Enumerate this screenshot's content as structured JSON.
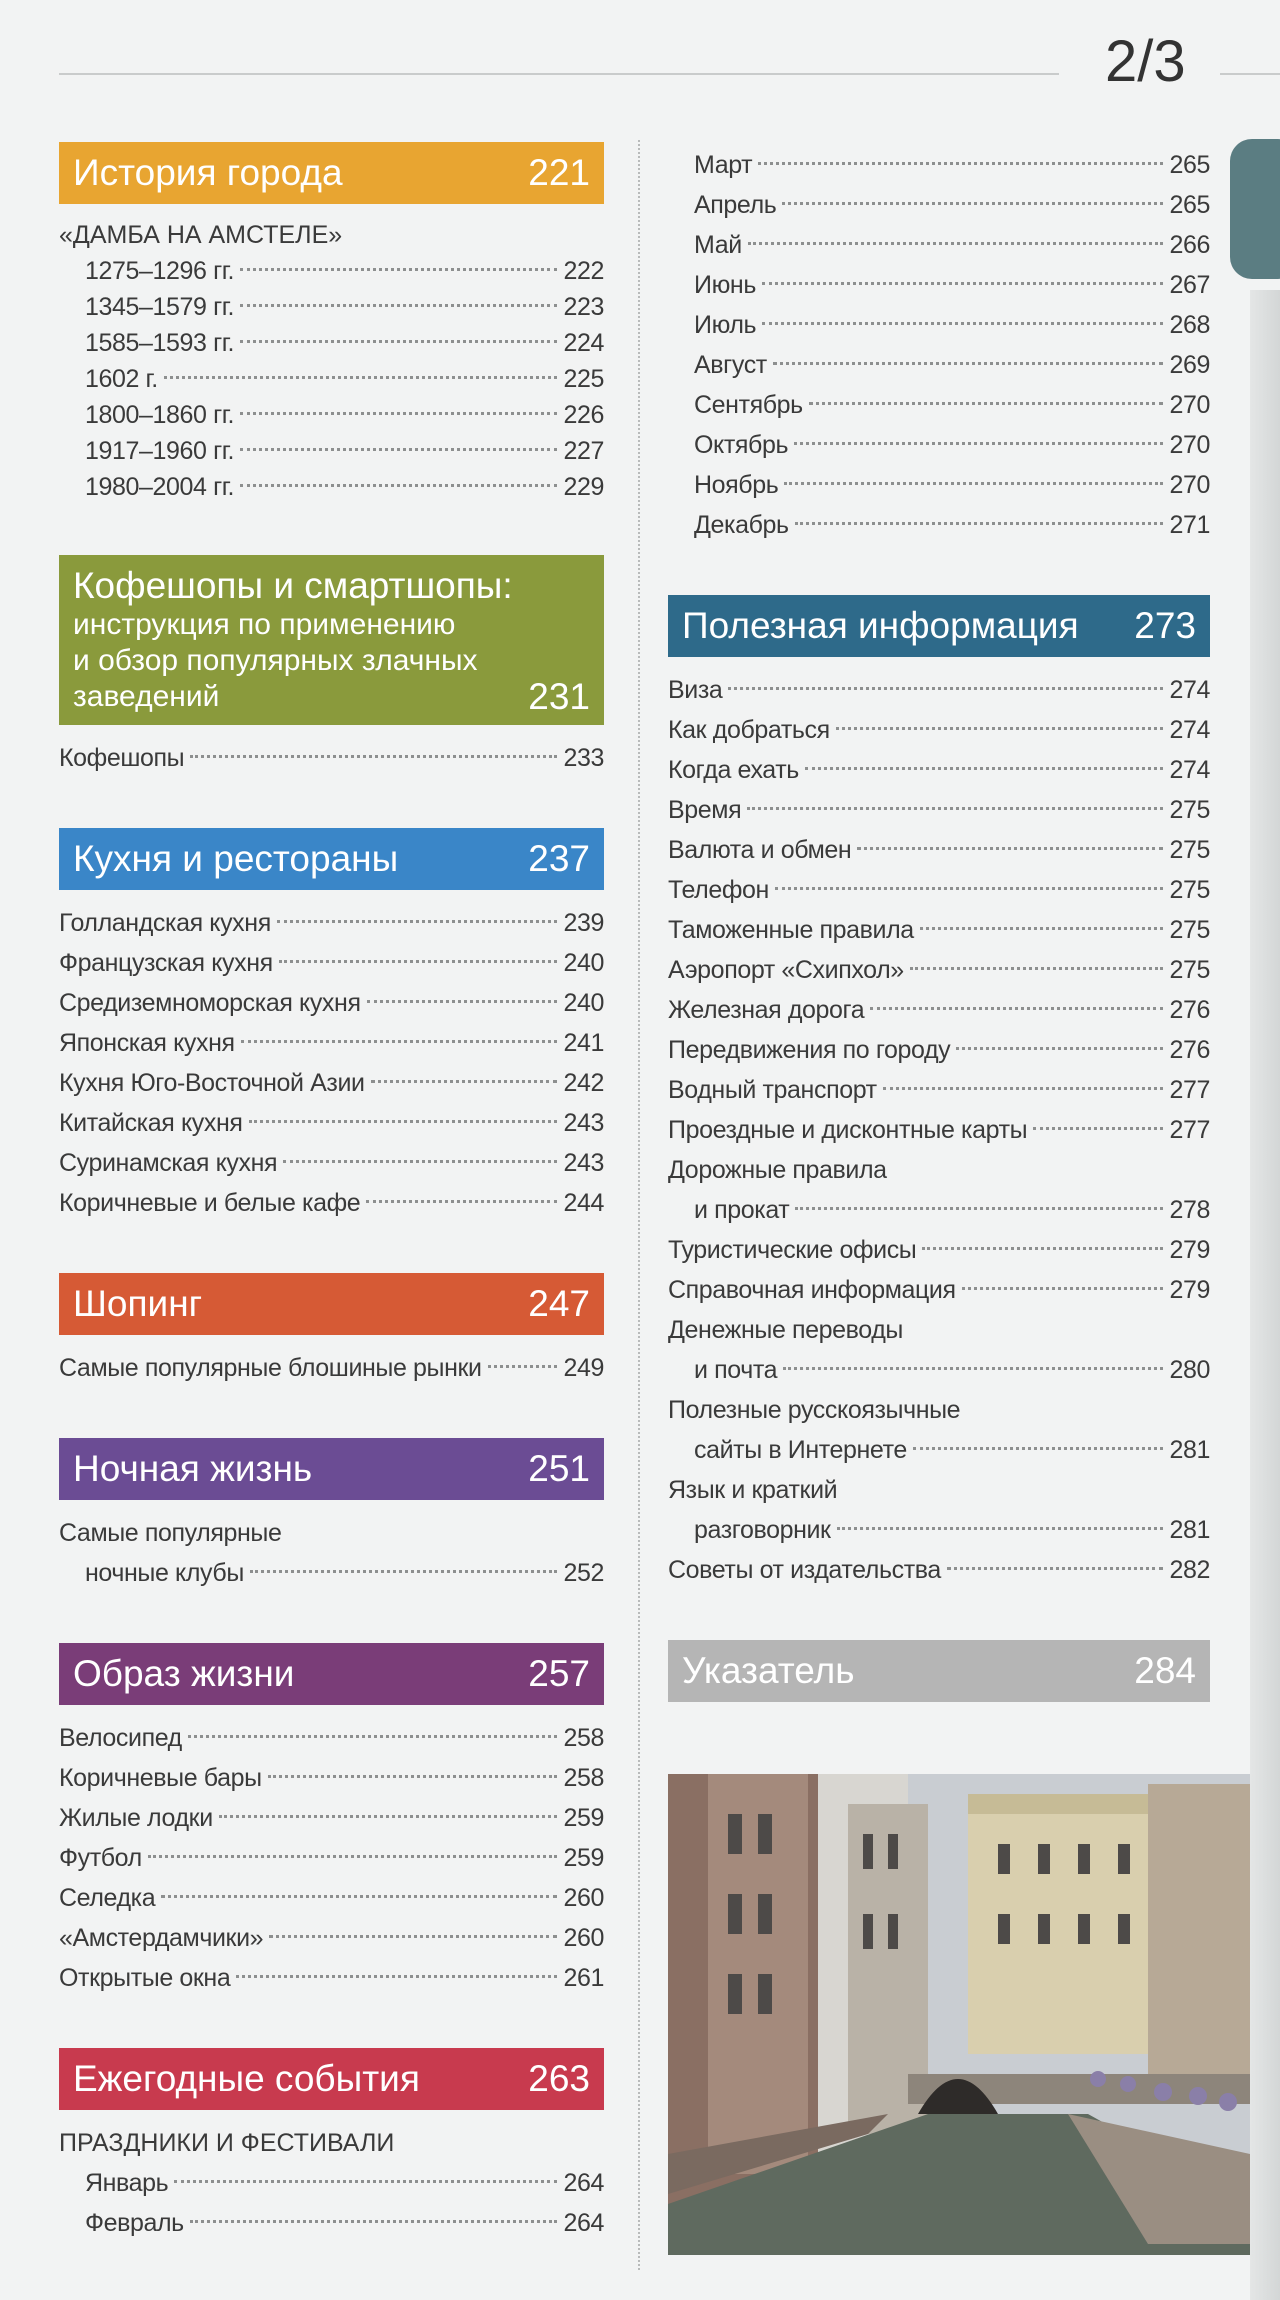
{
  "page_marker": "2/3",
  "columns": [
    {
      "sections": [
        {
          "title": "История города",
          "page": 221,
          "color": "#e8a531",
          "subheading": "«ДАМБА НА АМСТЕЛЕ»",
          "entries": [
            {
              "text": "1275–1296 гг.",
              "page": 222
            },
            {
              "text": "1345–1579 гг.",
              "page": 223
            },
            {
              "text": "1585–1593 гг.",
              "page": 224
            },
            {
              "text": "1602 г.",
              "page": 225
            },
            {
              "text": "1800–1860 гг.",
              "page": 226
            },
            {
              "text": "1917–1960 гг.",
              "page": 227
            },
            {
              "text": "1980–2004 гг.",
              "page": 229
            }
          ]
        },
        {
          "title": "Кофешопы и смартшопы:",
          "subtitle": [
            "инструкция по применению",
            "и обзор популярных злачных",
            "заведений"
          ],
          "page": 231,
          "color": "#8a9a3c",
          "entries": [
            {
              "text": "Кофешопы",
              "page": 233
            }
          ]
        },
        {
          "title": "Кухня и рестораны",
          "page": 237,
          "color": "#3a86c8",
          "entries": [
            {
              "text": "Голландская кухня",
              "page": 239
            },
            {
              "text": "Французская кухня",
              "page": 240
            },
            {
              "text": "Средиземноморская кухня",
              "page": 240
            },
            {
              "text": "Японская кухня",
              "page": 241
            },
            {
              "text": "Кухня Юго-Восточной Азии",
              "page": 242
            },
            {
              "text": "Китайская кухня",
              "page": 243
            },
            {
              "text": "Суринамская кухня",
              "page": 243
            },
            {
              "text": "Коричневые и белые кафе",
              "page": 244
            }
          ]
        },
        {
          "title": "Шопинг",
          "page": 247,
          "color": "#d65a35",
          "entries": [
            {
              "text": "Самые популярные блошиные рынки",
              "page": 249
            }
          ]
        },
        {
          "title": "Ночная жизнь",
          "page": 251,
          "color": "#6b4c94",
          "entries": [
            {
              "lines": [
                "Самые популярные",
                "ночные клубы"
              ],
              "page": 252
            }
          ]
        },
        {
          "title": "Образ жизни",
          "page": 257,
          "color": "#7a3d78",
          "entries": [
            {
              "text": "Велосипед",
              "page": 258
            },
            {
              "text": "Коричневые бары",
              "page": 258
            },
            {
              "text": "Жилые лодки",
              "page": 259
            },
            {
              "text": "Футбол",
              "page": 259
            },
            {
              "text": "Селедка",
              "page": 260
            },
            {
              "text": "«Амстердамчики»",
              "page": 260
            },
            {
              "text": "Открытые окна",
              "page": 261
            }
          ]
        },
        {
          "title": "Ежегодные события",
          "page": 263,
          "color": "#c83a4e",
          "subheading": "ПРАЗДНИКИ И ФЕСТИВАЛИ",
          "entries": [
            {
              "text": "Январь",
              "page": 264
            },
            {
              "text": "Февраль",
              "page": 264
            }
          ]
        }
      ]
    },
    {
      "sections": [
        {
          "entries": [
            {
              "text": "Март",
              "page": 265
            },
            {
              "text": "Апрель",
              "page": 265
            },
            {
              "text": "Май",
              "page": 266
            },
            {
              "text": "Июнь",
              "page": 267
            },
            {
              "text": "Июль",
              "page": 268
            },
            {
              "text": "Август",
              "page": 269
            },
            {
              "text": "Сентябрь",
              "page": 270
            },
            {
              "text": "Октябрь",
              "page": 270
            },
            {
              "text": "Ноябрь",
              "page": 270
            },
            {
              "text": "Декабрь",
              "page": 271
            }
          ]
        },
        {
          "title": "Полезная информация",
          "page": 273,
          "color": "#2e6a8a",
          "entries": [
            {
              "text": "Виза",
              "page": 274
            },
            {
              "text": "Как добраться",
              "page": 274
            },
            {
              "text": "Когда ехать",
              "page": 274
            },
            {
              "text": "Время",
              "page": 275
            },
            {
              "text": "Валюта и обмен",
              "page": 275
            },
            {
              "text": "Телефон",
              "page": 275
            },
            {
              "text": "Таможенные правила",
              "page": 275
            },
            {
              "text": "Аэропорт «Схипхол»",
              "page": 275
            },
            {
              "text": "Железная дорога",
              "page": 276
            },
            {
              "text": "Передвижения по городу",
              "page": 276
            },
            {
              "text": "Водный транспорт",
              "page": 277
            },
            {
              "text": "Проездные и дисконтные карты",
              "page": 277
            },
            {
              "lines": [
                "Дорожные правила",
                "и прокат"
              ],
              "page": 278
            },
            {
              "text": "Туристические офисы",
              "page": 279
            },
            {
              "text": "Справочная информация",
              "page": 279
            },
            {
              "lines": [
                "Денежные переводы",
                "и почта"
              ],
              "page": 280
            },
            {
              "lines": [
                "Полезные русскоязычные",
                "сайты в Интернете"
              ],
              "page": 281
            },
            {
              "lines": [
                "Язык и краткий",
                "разговорник"
              ],
              "page": 281
            },
            {
              "text": "Советы от издательства",
              "page": 282
            }
          ]
        },
        {
          "title": "Указатель",
          "page": 284,
          "color": "#b5b5b5",
          "entries": []
        }
      ]
    }
  ]
}
